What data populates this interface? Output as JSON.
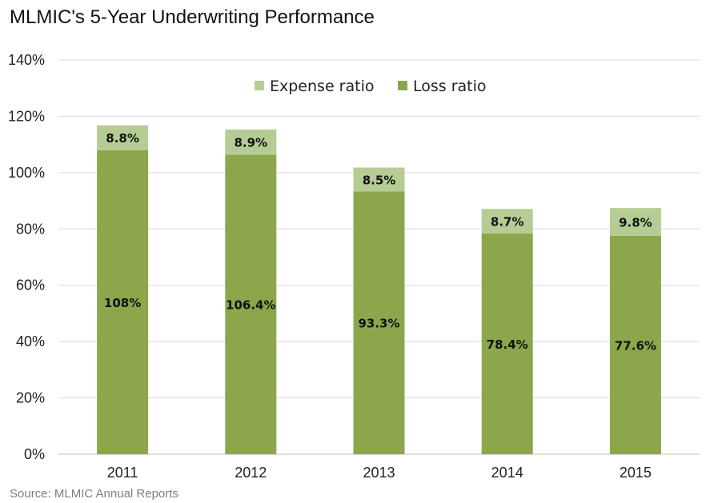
{
  "chart_data": {
    "type": "bar",
    "stacked": true,
    "title": "MLMIC's 5-Year Underwriting Performance",
    "source": "Source: MLMIC Annual Reports",
    "categories": [
      "2011",
      "2012",
      "2013",
      "2014",
      "2015"
    ],
    "series": [
      {
        "name": "Loss ratio",
        "color": "#8da64c",
        "values": [
          108,
          106.4,
          93.3,
          78.4,
          77.6
        ],
        "labels": [
          "108%",
          "106.4%",
          "93.3%",
          "78.4%",
          "77.6%"
        ]
      },
      {
        "name": "Expense ratio",
        "color": "#b5cc94",
        "values": [
          8.8,
          8.9,
          8.5,
          8.7,
          9.8
        ],
        "labels": [
          "8.8%",
          "8.9%",
          "8.5%",
          "8.7%",
          "9.8%"
        ]
      }
    ],
    "legend_order": [
      "Expense ratio",
      "Loss ratio"
    ],
    "legend_position": "top-center",
    "ylim": [
      0,
      140
    ],
    "yticks": [
      0,
      20,
      40,
      60,
      80,
      100,
      120,
      140
    ],
    "ytick_labels": [
      "0%",
      "20%",
      "40%",
      "60%",
      "80%",
      "100%",
      "120%",
      "140%"
    ],
    "grid": true,
    "xlabel": "",
    "ylabel": ""
  }
}
